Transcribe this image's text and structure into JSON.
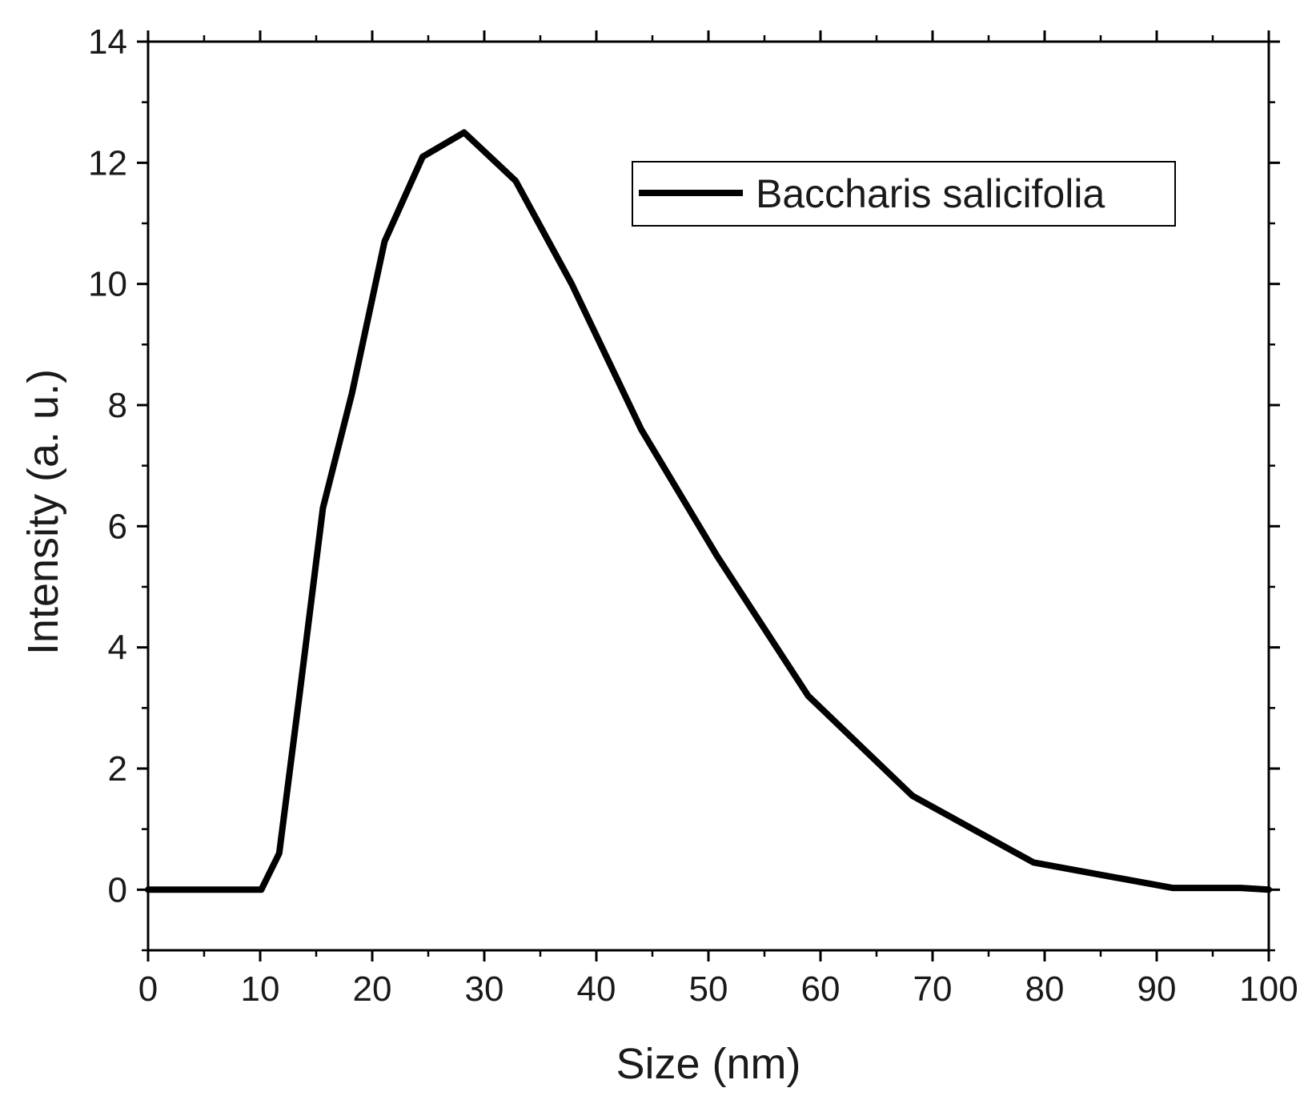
{
  "chart_data": {
    "type": "line",
    "xlabel": "Size (nm)",
    "ylabel": "Intensity (a. u.)",
    "xlim": [
      0,
      100
    ],
    "ylim": [
      -1,
      14
    ],
    "x_ticks": [
      0,
      10,
      20,
      30,
      40,
      50,
      60,
      70,
      80,
      90,
      100
    ],
    "y_ticks": [
      0,
      2,
      4,
      6,
      8,
      10,
      12,
      14
    ],
    "grid": false,
    "legend_position": "top-right",
    "line_color": "#000000",
    "series": [
      {
        "name": "Baccharis salicifolia",
        "x": [
          0,
          10.1,
          11.7,
          13.5,
          15.6,
          18.2,
          21.1,
          24.5,
          28.2,
          32.8,
          37.8,
          44.0,
          50.8,
          58.9,
          68.2,
          79.0,
          91.4,
          97.5,
          100
        ],
        "y": [
          0,
          0,
          0.6,
          3.2,
          6.3,
          8.2,
          10.7,
          12.1,
          12.5,
          11.7,
          10.0,
          7.6,
          5.5,
          3.2,
          1.55,
          0.45,
          0.03,
          0.03,
          0
        ]
      }
    ]
  }
}
